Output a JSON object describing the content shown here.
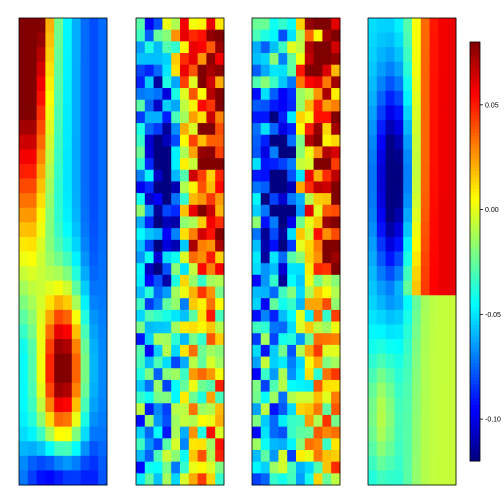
{
  "chart_data": {
    "type": "heatmap",
    "title": "",
    "panels": [
      {
        "name": "",
        "columns": 10,
        "rows": 32,
        "pattern": "smooth_left"
      },
      {
        "name": "",
        "columns": 10,
        "rows": 40,
        "pattern": "noisy_split"
      },
      {
        "name": "",
        "columns": 10,
        "rows": 40,
        "pattern": "noisy_split"
      },
      {
        "name": "",
        "columns": 10,
        "rows": 32,
        "pattern": "smooth_split"
      }
    ],
    "colorbar": {
      "colormap": "jet",
      "vmin": -0.12,
      "vmax": 0.08,
      "ticks": [
        {
          "value": 0.05,
          "label": "0.05"
        },
        {
          "value": 0.0,
          "label": "0.00"
        },
        {
          "value": -0.05,
          "label": "-0.05"
        },
        {
          "value": -0.1,
          "label": "-0.10"
        }
      ]
    },
    "grid": false,
    "legend_position": "right"
  }
}
